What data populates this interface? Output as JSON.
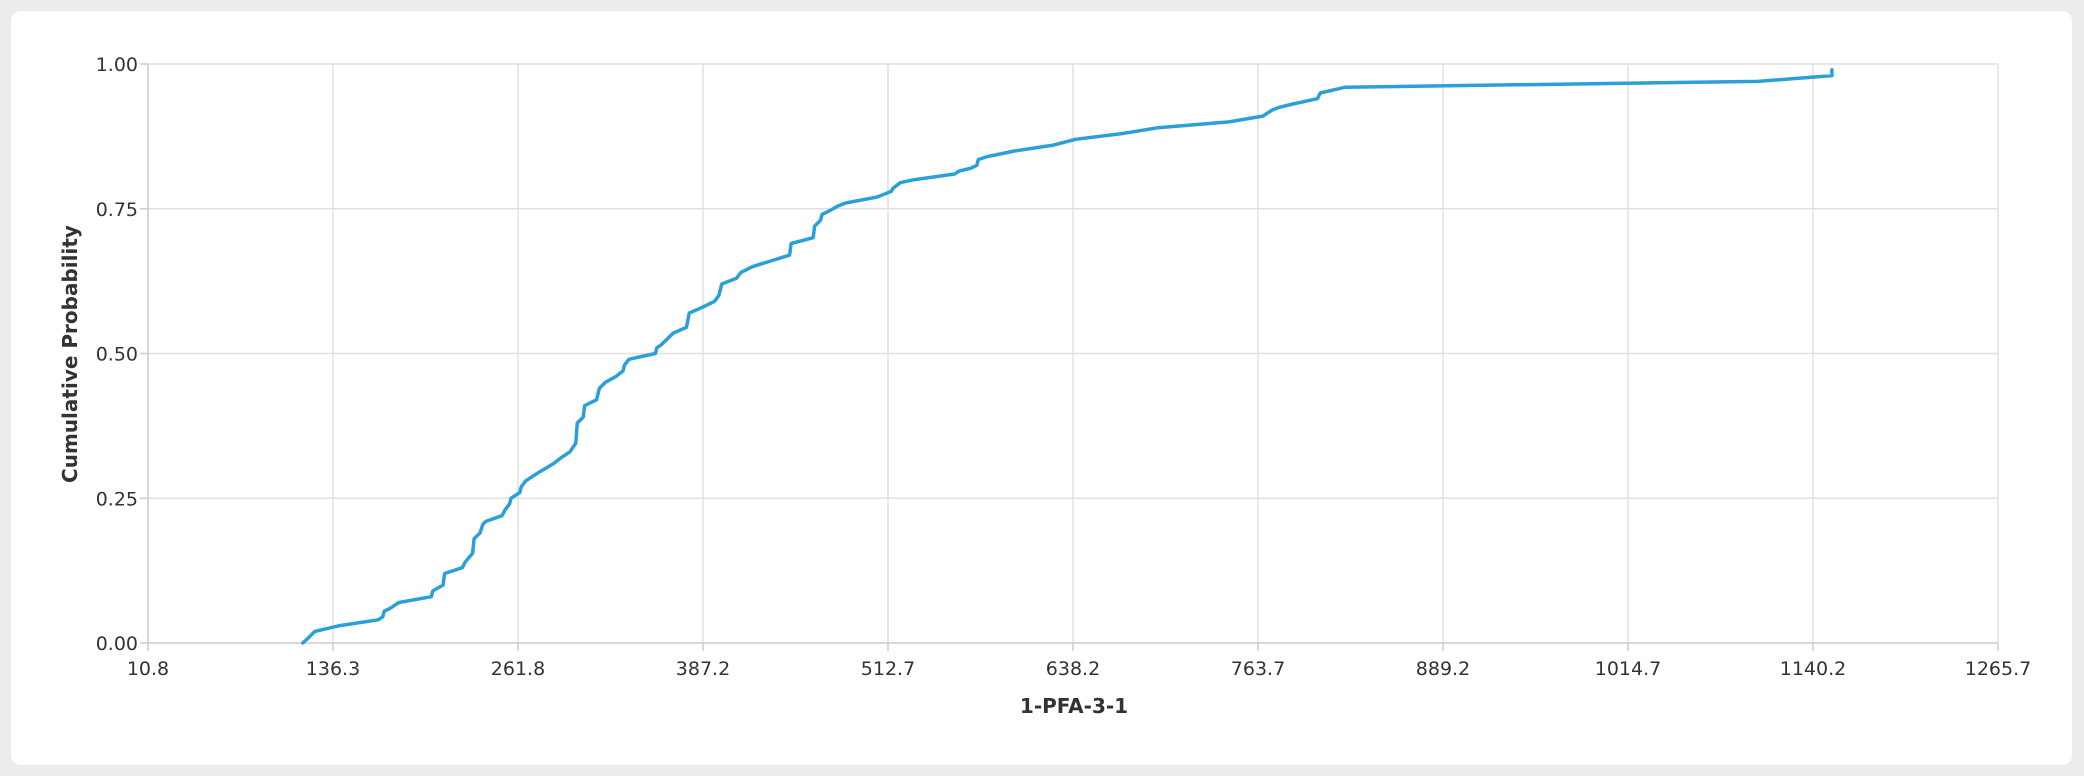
{
  "chart_data": {
    "type": "line",
    "title": "",
    "xlabel": "1-PFA-3-1",
    "ylabel": "Cumulative Probability",
    "xlim": [
      10.8,
      1265.7
    ],
    "ylim": [
      0,
      1
    ],
    "x_ticks": [
      "10.8",
      "136.3",
      "261.8",
      "387.2",
      "512.7",
      "638.2",
      "763.7",
      "889.2",
      "1014.7",
      "1140.2",
      "1265.7"
    ],
    "y_ticks": [
      "0.00",
      "0.25",
      "0.50",
      "0.75",
      "1.00"
    ],
    "grid": true,
    "legend": "none",
    "colors": {
      "series": "#2a9fd8"
    },
    "series": [
      {
        "name": "",
        "points": [
          [
            115.8,
            0.0
          ],
          [
            118.0,
            0.005
          ],
          [
            124.0,
            0.02
          ],
          [
            141.0,
            0.03
          ],
          [
            167.0,
            0.04
          ],
          [
            170.0,
            0.045
          ],
          [
            171.0,
            0.055
          ],
          [
            175.0,
            0.06
          ],
          [
            181.0,
            0.07
          ],
          [
            203.0,
            0.08
          ],
          [
            204.0,
            0.09
          ],
          [
            211.0,
            0.1
          ],
          [
            212.0,
            0.12
          ],
          [
            224.0,
            0.13
          ],
          [
            226.0,
            0.14
          ],
          [
            231.0,
            0.155
          ],
          [
            232.0,
            0.18
          ],
          [
            236.0,
            0.19
          ],
          [
            238.0,
            0.205
          ],
          [
            240.0,
            0.21
          ],
          [
            251.0,
            0.22
          ],
          [
            253.0,
            0.23
          ],
          [
            256.0,
            0.24
          ],
          [
            257.0,
            0.25
          ],
          [
            263.0,
            0.26
          ],
          [
            264.0,
            0.27
          ],
          [
            267.0,
            0.28
          ],
          [
            276.0,
            0.295
          ],
          [
            286.0,
            0.31
          ],
          [
            291.0,
            0.32
          ],
          [
            297.0,
            0.33
          ],
          [
            301.0,
            0.345
          ],
          [
            302.0,
            0.38
          ],
          [
            306.0,
            0.39
          ],
          [
            307.0,
            0.41
          ],
          [
            315.0,
            0.42
          ],
          [
            317.0,
            0.44
          ],
          [
            321.0,
            0.45
          ],
          [
            328.0,
            0.46
          ],
          [
            333.0,
            0.47
          ],
          [
            334.0,
            0.48
          ],
          [
            337.0,
            0.49
          ],
          [
            355.0,
            0.5
          ],
          [
            356.0,
            0.51
          ],
          [
            359.0,
            0.515
          ],
          [
            367.0,
            0.535
          ],
          [
            376.0,
            0.545
          ],
          [
            378.0,
            0.57
          ],
          [
            387.0,
            0.58
          ],
          [
            395.0,
            0.59
          ],
          [
            398.0,
            0.6
          ],
          [
            400.0,
            0.62
          ],
          [
            410.0,
            0.63
          ],
          [
            413.0,
            0.64
          ],
          [
            421.0,
            0.65
          ],
          [
            446.0,
            0.67
          ],
          [
            447.0,
            0.69
          ],
          [
            462.0,
            0.7
          ],
          [
            463.0,
            0.72
          ],
          [
            467.0,
            0.73
          ],
          [
            468.0,
            0.74
          ],
          [
            472.0,
            0.745
          ],
          [
            479.0,
            0.755
          ],
          [
            484.0,
            0.76
          ],
          [
            505.0,
            0.77
          ],
          [
            515.0,
            0.78
          ],
          [
            516.0,
            0.785
          ],
          [
            521.0,
            0.795
          ],
          [
            530.0,
            0.8
          ],
          [
            558.0,
            0.81
          ],
          [
            561.0,
            0.815
          ],
          [
            569.0,
            0.82
          ],
          [
            573.0,
            0.825
          ],
          [
            574.0,
            0.835
          ],
          [
            580.0,
            0.84
          ],
          [
            599.0,
            0.85
          ],
          [
            625.0,
            0.86
          ],
          [
            640.0,
            0.87
          ],
          [
            672.0,
            0.88
          ],
          [
            696.0,
            0.89
          ],
          [
            744.0,
            0.9
          ],
          [
            767.0,
            0.91
          ],
          [
            773.0,
            0.92
          ],
          [
            778.0,
            0.925
          ],
          [
            786.0,
            0.93
          ],
          [
            804.0,
            0.94
          ],
          [
            806.0,
            0.95
          ],
          [
            823.0,
            0.96
          ],
          [
            1103.0,
            0.97
          ],
          [
            1153.0,
            0.98
          ],
          [
            1153.0,
            0.99
          ]
        ]
      }
    ]
  }
}
